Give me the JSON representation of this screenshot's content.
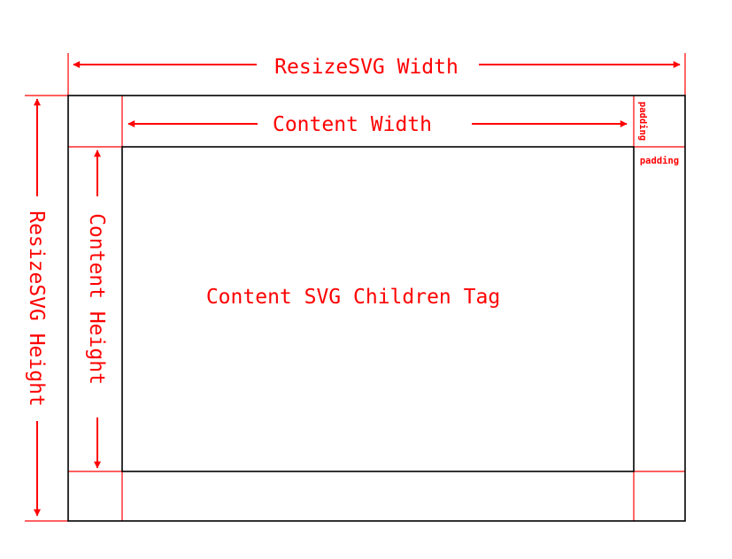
{
  "labels": {
    "resize_width": "ResizeSVG Width",
    "resize_height": "ResizeSVG Height",
    "content_width": "Content Width",
    "content_height": "Content Height",
    "content_children": "Content SVG Children Tag",
    "padding_top": "padding",
    "padding_right": "padding"
  },
  "colors": {
    "annotation": "#ff0000",
    "outline": "#000000",
    "background": "#ffffff"
  }
}
